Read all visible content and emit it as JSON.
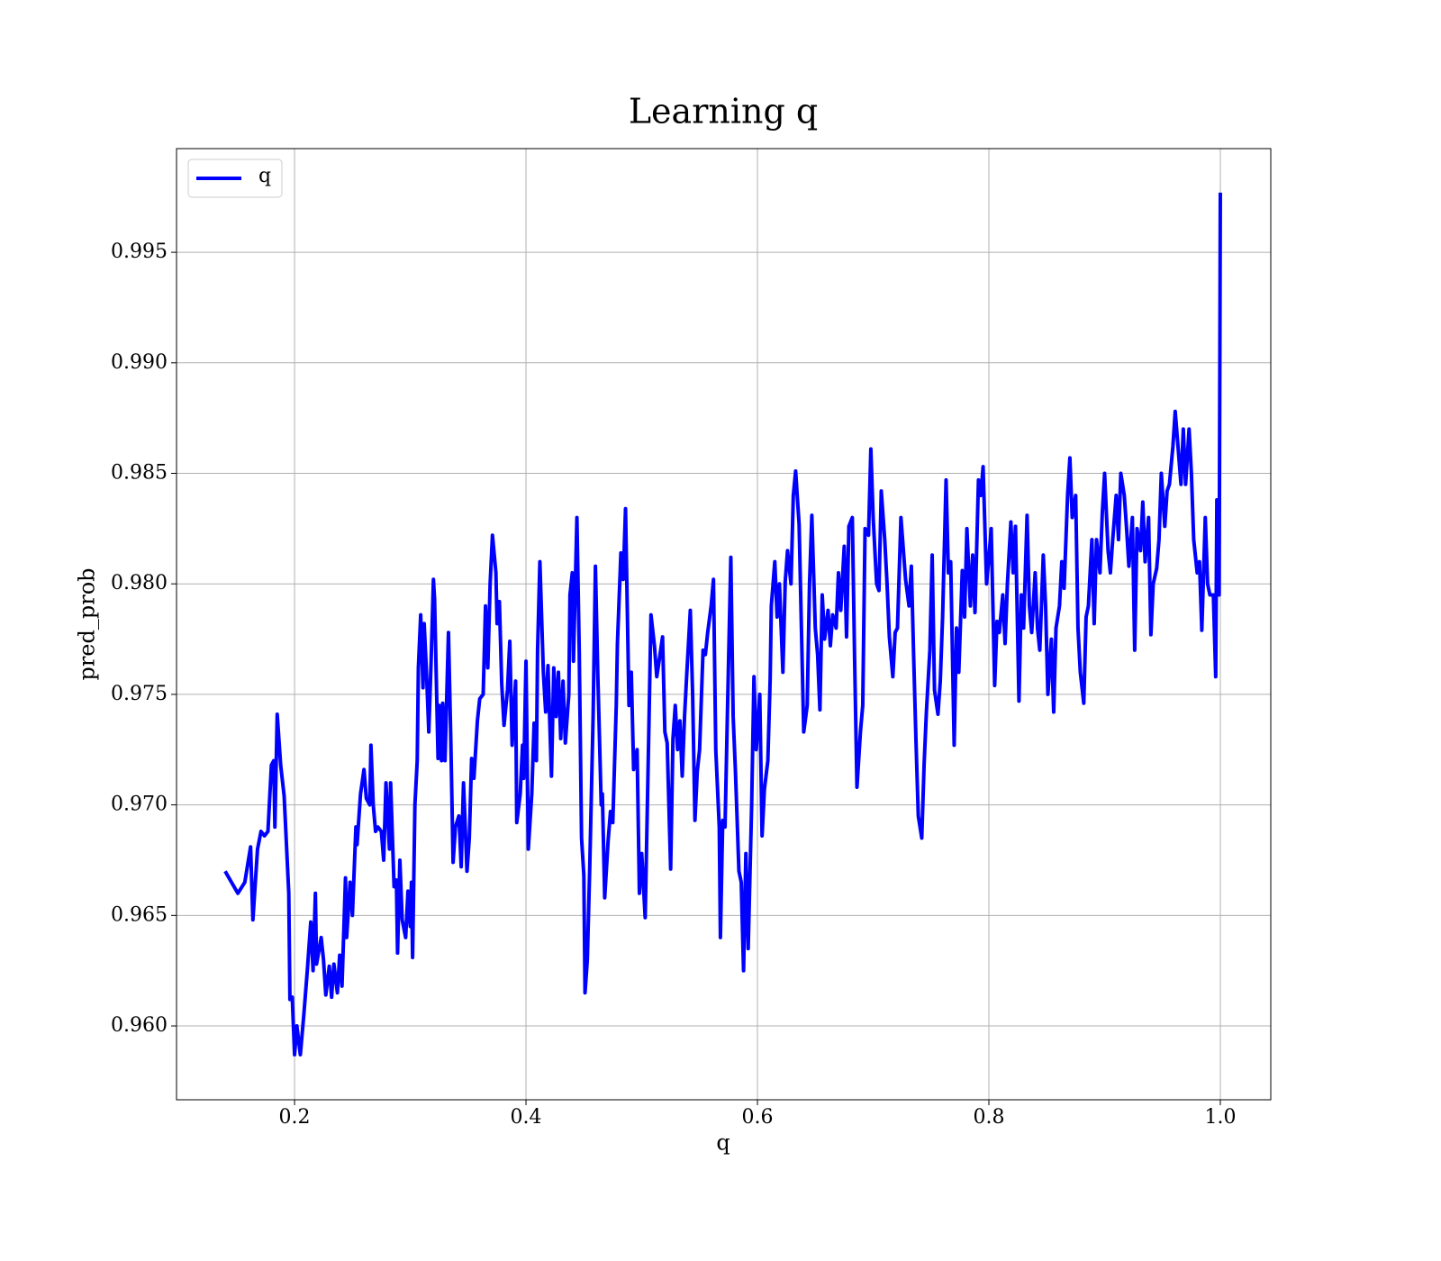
{
  "chart_data": {
    "type": "line",
    "title": "Learning q",
    "xlabel": "q",
    "ylabel": "pred_prob",
    "xlim": [
      0.098,
      1.0436
    ],
    "ylim": [
      0.95666,
      0.99969
    ],
    "xticks": [
      0.2,
      0.4,
      0.6,
      0.8,
      {
        "value": 1,
        "label": "1.0"
      }
    ],
    "yticks": [
      {
        "value": 0.96,
        "label": "0.960"
      },
      0.965,
      {
        "value": 0.97,
        "label": "0.970"
      },
      0.975,
      {
        "value": 0.98,
        "label": "0.980"
      },
      0.985,
      {
        "value": 0.99,
        "label": "0.990"
      },
      0.995
    ],
    "grid": true,
    "legend": "upper left",
    "x": [
      0.14,
      0.151,
      0.157,
      0.162,
      0.164,
      0.168,
      0.171,
      0.174,
      0.177,
      0.18,
      0.182,
      0.183,
      0.185,
      0.188,
      0.191,
      0.193,
      0.195,
      0.196,
      0.198,
      0.2,
      0.202,
      0.205,
      0.208,
      0.211,
      0.214,
      0.216,
      0.218,
      0.219,
      0.223,
      0.225,
      0.227,
      0.23,
      0.232,
      0.234,
      0.237,
      0.239,
      0.241,
      0.244,
      0.245,
      0.248,
      0.25,
      0.253,
      0.254,
      0.257,
      0.26,
      0.262,
      0.265,
      0.266,
      0.268,
      0.27,
      0.272,
      0.275,
      0.277,
      0.279,
      0.282,
      0.283,
      0.286,
      0.288,
      0.289,
      0.291,
      0.293,
      0.296,
      0.298,
      0.3,
      0.301,
      0.302,
      0.304,
      0.306,
      0.307,
      0.309,
      0.311,
      0.312,
      0.314,
      0.316,
      0.318,
      0.32,
      0.321,
      0.324,
      0.325,
      0.327,
      0.328,
      0.33,
      0.333,
      0.335,
      0.337,
      0.339,
      0.342,
      0.344,
      0.346,
      0.349,
      0.351,
      0.353,
      0.355,
      0.358,
      0.36,
      0.363,
      0.365,
      0.367,
      0.369,
      0.371,
      0.374,
      0.375,
      0.377,
      0.379,
      0.381,
      0.384,
      0.386,
      0.388,
      0.391,
      0.392,
      0.395,
      0.397,
      0.398,
      0.4,
      0.402,
      0.405,
      0.407,
      0.409,
      0.41,
      0.412,
      0.415,
      0.417,
      0.419,
      0.422,
      0.424,
      0.426,
      0.428,
      0.43,
      0.432,
      0.434,
      0.437,
      0.438,
      0.44,
      0.441,
      0.444,
      0.446,
      0.448,
      0.45,
      0.451,
      0.453,
      0.455,
      0.458,
      0.46,
      0.462,
      0.465,
      0.466,
      0.468,
      0.471,
      0.473,
      0.475,
      0.478,
      0.479,
      0.482,
      0.484,
      0.486,
      0.489,
      0.491,
      0.493,
      0.496,
      0.498,
      0.5,
      0.503,
      0.506,
      0.508,
      0.511,
      0.513,
      0.515,
      0.518,
      0.52,
      0.522,
      0.525,
      0.527,
      0.529,
      0.531,
      0.533,
      0.535,
      0.537,
      0.539,
      0.542,
      0.544,
      0.546,
      0.548,
      0.55,
      0.553,
      0.555,
      0.557,
      0.56,
      0.562,
      0.564,
      0.567,
      0.568,
      0.57,
      0.572,
      0.574,
      0.577,
      0.579,
      0.581,
      0.584,
      0.586,
      0.588,
      0.59,
      0.592,
      0.595,
      0.597,
      0.599,
      0.602,
      0.604,
      0.606,
      0.609,
      0.611,
      0.612,
      0.615,
      0.617,
      0.619,
      0.622,
      0.624,
      0.626,
      0.629,
      0.631,
      0.633,
      0.636,
      0.638,
      0.64,
      0.643,
      0.645,
      0.647,
      0.65,
      0.652,
      0.654,
      0.656,
      0.658,
      0.661,
      0.663,
      0.665,
      0.668,
      0.67,
      0.672,
      0.675,
      0.677,
      0.679,
      0.682,
      0.684,
      0.686,
      0.689,
      0.691,
      0.693,
      0.696,
      0.698,
      0.7,
      0.703,
      0.705,
      0.707,
      0.71,
      0.712,
      0.714,
      0.717,
      0.719,
      0.721,
      0.724,
      0.726,
      0.728,
      0.731,
      0.733,
      0.735,
      0.737,
      0.739,
      0.742,
      0.744,
      0.746,
      0.749,
      0.751,
      0.753,
      0.756,
      0.758,
      0.76,
      0.763,
      0.765,
      0.767,
      0.77,
      0.772,
      0.774,
      0.777,
      0.779,
      0.781,
      0.784,
      0.786,
      0.788,
      0.791,
      0.793,
      0.795,
      0.798,
      0.8,
      0.802,
      0.805,
      0.807,
      0.809,
      0.812,
      0.814,
      0.816,
      0.819,
      0.821,
      0.823,
      0.826,
      0.828,
      0.83,
      0.833,
      0.835,
      0.837,
      0.84,
      0.842,
      0.844,
      0.847,
      0.849,
      0.851,
      0.854,
      0.856,
      0.858,
      0.861,
      0.863,
      0.865,
      0.868,
      0.87,
      0.872,
      0.875,
      0.877,
      0.879,
      0.882,
      0.884,
      0.886,
      0.889,
      0.891,
      0.893,
      0.896,
      0.898,
      0.9,
      0.903,
      0.905,
      0.907,
      0.91,
      0.912,
      0.914,
      0.917,
      0.919,
      0.921,
      0.924,
      0.926,
      0.928,
      0.931,
      0.933,
      0.935,
      0.938,
      0.94,
      0.942,
      0.945,
      0.947,
      0.949,
      0.952,
      0.954,
      0.956,
      0.959,
      0.961,
      0.963,
      0.966,
      0.968,
      0.97,
      0.973,
      0.975,
      0.977,
      0.98,
      0.982,
      0.984,
      0.987,
      0.989,
      0.991,
      0.994,
      0.996,
      0.997,
      0.999,
      1.0
    ],
    "series": [
      {
        "name": "q",
        "color": "#0000ff",
        "values": [
          0.967,
          0.966,
          0.9665,
          0.9681,
          0.9648,
          0.968,
          0.9688,
          0.9686,
          0.9688,
          0.9718,
          0.972,
          0.969,
          0.9741,
          0.9718,
          0.9704,
          0.9682,
          0.966,
          0.9612,
          0.9613,
          0.9587,
          0.96,
          0.9587,
          0.9605,
          0.9625,
          0.9647,
          0.9625,
          0.966,
          0.9628,
          0.964,
          0.963,
          0.9614,
          0.9627,
          0.9613,
          0.9628,
          0.9615,
          0.9632,
          0.9618,
          0.9667,
          0.964,
          0.9665,
          0.965,
          0.969,
          0.9682,
          0.9705,
          0.9716,
          0.9703,
          0.97,
          0.9727,
          0.97,
          0.9688,
          0.969,
          0.9688,
          0.9675,
          0.971,
          0.968,
          0.971,
          0.9663,
          0.9666,
          0.9633,
          0.9675,
          0.9648,
          0.964,
          0.9661,
          0.9645,
          0.9665,
          0.9631,
          0.97,
          0.972,
          0.9762,
          0.9786,
          0.9753,
          0.9782,
          0.976,
          0.9733,
          0.9765,
          0.9802,
          0.9793,
          0.9721,
          0.9745,
          0.972,
          0.9746,
          0.972,
          0.9778,
          0.973,
          0.9674,
          0.969,
          0.9695,
          0.9672,
          0.971,
          0.967,
          0.9685,
          0.9721,
          0.9712,
          0.9738,
          0.9748,
          0.975,
          0.979,
          0.9762,
          0.98,
          0.9822,
          0.9805,
          0.9782,
          0.9792,
          0.9755,
          0.9736,
          0.9752,
          0.9774,
          0.9727,
          0.9756,
          0.9692,
          0.9705,
          0.9727,
          0.9712,
          0.9765,
          0.968,
          0.9705,
          0.9737,
          0.972,
          0.977,
          0.981,
          0.976,
          0.9742,
          0.9763,
          0.9713,
          0.9762,
          0.974,
          0.976,
          0.973,
          0.9756,
          0.9728,
          0.975,
          0.9795,
          0.9805,
          0.9765,
          0.983,
          0.977,
          0.9685,
          0.9668,
          0.9615,
          0.963,
          0.967,
          0.974,
          0.9808,
          0.976,
          0.97,
          0.9705,
          0.9658,
          0.9684,
          0.9697,
          0.9692,
          0.9745,
          0.9773,
          0.9814,
          0.9802,
          0.9834,
          0.9745,
          0.976,
          0.9716,
          0.9725,
          0.966,
          0.9678,
          0.9649,
          0.973,
          0.9786,
          0.9772,
          0.9758,
          0.9765,
          0.9776,
          0.9733,
          0.9728,
          0.9671,
          0.973,
          0.9745,
          0.9725,
          0.9738,
          0.9713,
          0.974,
          0.976,
          0.9788,
          0.975,
          0.9693,
          0.9715,
          0.9725,
          0.977,
          0.9768,
          0.9778,
          0.979,
          0.9802,
          0.9725,
          0.969,
          0.964,
          0.9693,
          0.969,
          0.974,
          0.9812,
          0.974,
          0.9715,
          0.967,
          0.9665,
          0.9625,
          0.9678,
          0.9635,
          0.97,
          0.9758,
          0.9725,
          0.975,
          0.9686,
          0.9707,
          0.972,
          0.9757,
          0.979,
          0.981,
          0.9785,
          0.98,
          0.976,
          0.9801,
          0.9815,
          0.98,
          0.984,
          0.9851,
          0.9827,
          0.978,
          0.9733,
          0.9745,
          0.98,
          0.9831,
          0.978,
          0.9768,
          0.9743,
          0.9795,
          0.9775,
          0.9788,
          0.9772,
          0.9786,
          0.978,
          0.9805,
          0.9788,
          0.9817,
          0.9776,
          0.9826,
          0.983,
          0.9765,
          0.9708,
          0.9733,
          0.9745,
          0.9825,
          0.9822,
          0.9861,
          0.983,
          0.98,
          0.9797,
          0.9842,
          0.982,
          0.98,
          0.9776,
          0.9758,
          0.9778,
          0.978,
          0.983,
          0.9816,
          0.9802,
          0.979,
          0.9808,
          0.9767,
          0.9729,
          0.9695,
          0.9685,
          0.9718,
          0.9742,
          0.977,
          0.9813,
          0.9752,
          0.9741,
          0.9756,
          0.9785,
          0.9847,
          0.9805,
          0.981,
          0.9727,
          0.978,
          0.976,
          0.9806,
          0.9785,
          0.9825,
          0.979,
          0.9813,
          0.9787,
          0.9847,
          0.984,
          0.9853,
          0.98,
          0.9812,
          0.9825,
          0.9754,
          0.9783,
          0.9778,
          0.9795,
          0.9773,
          0.98,
          0.9828,
          0.9805,
          0.9826,
          0.9747,
          0.9795,
          0.978,
          0.9831,
          0.979,
          0.9778,
          0.9805,
          0.978,
          0.977,
          0.9813,
          0.979,
          0.975,
          0.9775,
          0.9742,
          0.978,
          0.979,
          0.981,
          0.9798,
          0.984,
          0.9857,
          0.983,
          0.984,
          0.978,
          0.976,
          0.9746,
          0.9785,
          0.979,
          0.982,
          0.9782,
          0.982,
          0.9805,
          0.9832,
          0.985,
          0.9815,
          0.9805,
          0.982,
          0.984,
          0.982,
          0.985,
          0.984,
          0.9825,
          0.9808,
          0.983,
          0.977,
          0.9825,
          0.9815,
          0.9837,
          0.981,
          0.983,
          0.9777,
          0.98,
          0.9807,
          0.982,
          0.985,
          0.9826,
          0.9842,
          0.9845,
          0.9862,
          0.9878,
          0.9865,
          0.9845,
          0.987,
          0.9845,
          0.987,
          0.985,
          0.982,
          0.9805,
          0.981,
          0.9779,
          0.983,
          0.98,
          0.9795,
          0.9795,
          0.9758,
          0.9838,
          0.9795,
          0.9977
        ]
      }
    ]
  }
}
